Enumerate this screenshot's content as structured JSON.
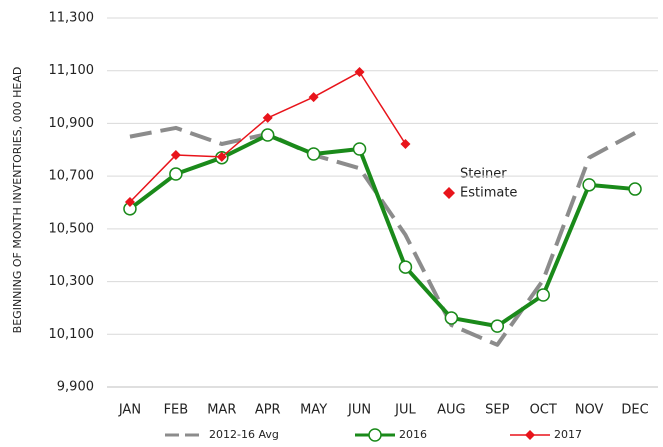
{
  "chart_data": {
    "type": "line",
    "y_label": "BEGINNING OF MONTH INVENTORIES, 000 HEAD",
    "categories": [
      "JAN",
      "FEB",
      "MAR",
      "APR",
      "MAY",
      "JUN",
      "JUL",
      "AUG",
      "SEP",
      "OCT",
      "NOV",
      "DEC"
    ],
    "ylim": [
      9900,
      11300
    ],
    "yticks": [
      {
        "value": 9900,
        "label": "9,900"
      },
      {
        "value": 10100,
        "label": "10,100"
      },
      {
        "value": 10300,
        "label": "10,300"
      },
      {
        "value": 10500,
        "label": "10,500"
      },
      {
        "value": 10700,
        "label": "10,700"
      },
      {
        "value": 10900,
        "label": "10,900"
      },
      {
        "value": 11100,
        "label": "11,100"
      },
      {
        "value": 11300,
        "label": "11,300"
      }
    ],
    "grid": true,
    "legend": "bottom",
    "annotations": [
      "Steiner",
      "Estimate"
    ],
    "series": [
      {
        "name": "2012-16 Avg",
        "color": "#8c8c8c",
        "style": "dashed",
        "marker": "none",
        "values": [
          10850,
          10883,
          10822,
          10860,
          10780,
          10730,
          10477,
          10135,
          10060,
          10306,
          10770,
          10864
        ]
      },
      {
        "name": "2016",
        "color": "#1a8a1a",
        "style": "solid",
        "marker": "circle",
        "values": [
          10576,
          10708,
          10770,
          10856,
          10784,
          10803,
          10355,
          10162,
          10131,
          10249,
          10667,
          10651
        ]
      },
      {
        "name": "2017",
        "color": "#e8141b",
        "style": "solid",
        "marker": "diamond",
        "values": [
          10602,
          10780,
          10773,
          10921,
          11000,
          11095,
          10822,
          null,
          null,
          null,
          null,
          null
        ]
      }
    ]
  }
}
